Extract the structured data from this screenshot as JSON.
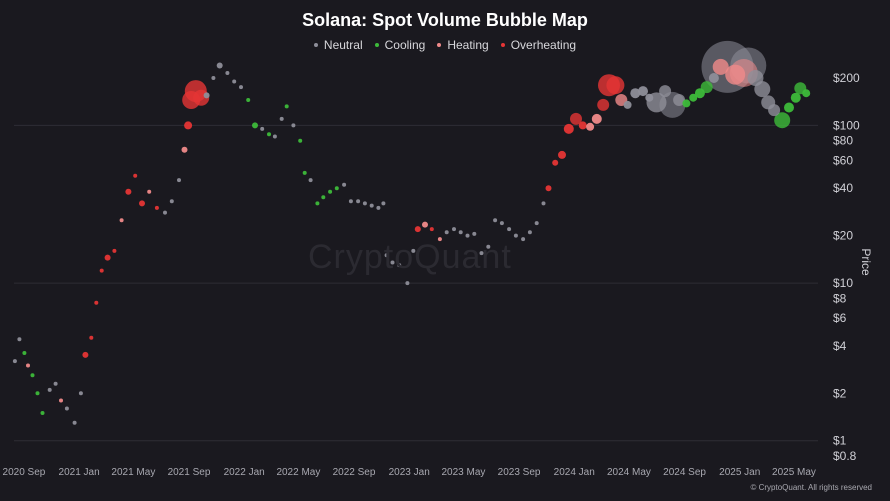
{
  "chart_data": {
    "type": "scatter",
    "title": "Solana: Spot Volume Bubble Map",
    "xlabel": "",
    "ylabel": "Price",
    "y_scale": "log",
    "ylim": [
      0.8,
      260
    ],
    "xlim": [
      "2020-08-10",
      "2025-06-01"
    ],
    "grid": "horizontal",
    "legend_position": "top-center",
    "x_ticks": [
      "2020 Sep",
      "2021 Jan",
      "2021 May",
      "2021 Sep",
      "2022 Jan",
      "2022 May",
      "2022 Sep",
      "2023 Jan",
      "2023 May",
      "2023 Sep",
      "2024 Jan",
      "2024 May",
      "2024 Sep",
      "2025 Jan",
      "2025 May"
    ],
    "x_tick_dates": [
      "2020-09-01",
      "2021-01-01",
      "2021-05-01",
      "2021-09-01",
      "2022-01-01",
      "2022-05-01",
      "2022-09-01",
      "2023-01-01",
      "2023-05-01",
      "2023-09-01",
      "2024-01-01",
      "2024-05-01",
      "2024-09-01",
      "2025-01-01",
      "2025-05-01"
    ],
    "y_ticks": [
      0.8,
      1,
      2,
      4,
      6,
      8,
      10,
      20,
      40,
      60,
      80,
      100,
      200
    ],
    "y_tick_labels": [
      "$0.8",
      "$1",
      "$2",
      "$4",
      "$6",
      "$8",
      "$10",
      "$20",
      "$40",
      "$60",
      "$80",
      "$100",
      "$200"
    ],
    "categories": [
      {
        "name": "Neutral",
        "color": "#8e8e99"
      },
      {
        "name": "Cooling",
        "color": "#3dbb3a"
      },
      {
        "name": "Heating",
        "color": "#f08a8a"
      },
      {
        "name": "Overheating",
        "color": "#e53535"
      }
    ],
    "series": [
      {
        "date": "2020-08-12",
        "price": 3.2,
        "state": "Neutral",
        "size": 2
      },
      {
        "date": "2020-08-22",
        "price": 4.4,
        "state": "Neutral",
        "size": 2
      },
      {
        "date": "2020-09-02",
        "price": 3.6,
        "state": "Cooling",
        "size": 2
      },
      {
        "date": "2020-09-10",
        "price": 3.0,
        "state": "Heating",
        "size": 2
      },
      {
        "date": "2020-09-20",
        "price": 2.6,
        "state": "Cooling",
        "size": 2
      },
      {
        "date": "2020-10-01",
        "price": 2.0,
        "state": "Cooling",
        "size": 2
      },
      {
        "date": "2020-10-12",
        "price": 1.5,
        "state": "Cooling",
        "size": 2
      },
      {
        "date": "2020-10-28",
        "price": 2.1,
        "state": "Neutral",
        "size": 2
      },
      {
        "date": "2020-11-10",
        "price": 2.3,
        "state": "Neutral",
        "size": 2
      },
      {
        "date": "2020-11-22",
        "price": 1.8,
        "state": "Heating",
        "size": 2
      },
      {
        "date": "2020-12-05",
        "price": 1.6,
        "state": "Neutral",
        "size": 2
      },
      {
        "date": "2020-12-22",
        "price": 1.3,
        "state": "Neutral",
        "size": 2
      },
      {
        "date": "2021-01-05",
        "price": 2.0,
        "state": "Neutral",
        "size": 2
      },
      {
        "date": "2021-01-15",
        "price": 3.5,
        "state": "Overheating",
        "size": 3
      },
      {
        "date": "2021-01-28",
        "price": 4.5,
        "state": "Overheating",
        "size": 2
      },
      {
        "date": "2021-02-08",
        "price": 7.5,
        "state": "Overheating",
        "size": 2
      },
      {
        "date": "2021-02-20",
        "price": 12.0,
        "state": "Overheating",
        "size": 2
      },
      {
        "date": "2021-03-05",
        "price": 14.5,
        "state": "Overheating",
        "size": 3
      },
      {
        "date": "2021-03-20",
        "price": 16.0,
        "state": "Overheating",
        "size": 2
      },
      {
        "date": "2021-04-05",
        "price": 25.0,
        "state": "Heating",
        "size": 2
      },
      {
        "date": "2021-04-20",
        "price": 38.0,
        "state": "Overheating",
        "size": 3
      },
      {
        "date": "2021-05-05",
        "price": 48.0,
        "state": "Overheating",
        "size": 2
      },
      {
        "date": "2021-05-20",
        "price": 32.0,
        "state": "Overheating",
        "size": 3
      },
      {
        "date": "2021-06-05",
        "price": 38.0,
        "state": "Heating",
        "size": 2
      },
      {
        "date": "2021-06-22",
        "price": 30.0,
        "state": "Overheating",
        "size": 2
      },
      {
        "date": "2021-07-10",
        "price": 28.0,
        "state": "Neutral",
        "size": 2
      },
      {
        "date": "2021-07-25",
        "price": 33.0,
        "state": "Neutral",
        "size": 2
      },
      {
        "date": "2021-08-10",
        "price": 45.0,
        "state": "Neutral",
        "size": 2
      },
      {
        "date": "2021-08-22",
        "price": 70.0,
        "state": "Heating",
        "size": 3
      },
      {
        "date": "2021-08-30",
        "price": 100.0,
        "state": "Overheating",
        "size": 4
      },
      {
        "date": "2021-09-06",
        "price": 145.0,
        "state": "Overheating",
        "size": 9
      },
      {
        "date": "2021-09-16",
        "price": 165.0,
        "state": "Overheating",
        "size": 11
      },
      {
        "date": "2021-09-28",
        "price": 150.0,
        "state": "Overheating",
        "size": 8
      },
      {
        "date": "2021-10-10",
        "price": 155.0,
        "state": "Neutral",
        "size": 3
      },
      {
        "date": "2021-10-25",
        "price": 200.0,
        "state": "Neutral",
        "size": 2
      },
      {
        "date": "2021-11-08",
        "price": 240.0,
        "state": "Neutral",
        "size": 3
      },
      {
        "date": "2021-11-25",
        "price": 215.0,
        "state": "Neutral",
        "size": 2
      },
      {
        "date": "2021-12-10",
        "price": 190.0,
        "state": "Neutral",
        "size": 2
      },
      {
        "date": "2021-12-25",
        "price": 175.0,
        "state": "Neutral",
        "size": 2
      },
      {
        "date": "2022-01-10",
        "price": 145.0,
        "state": "Cooling",
        "size": 2
      },
      {
        "date": "2022-01-25",
        "price": 100.0,
        "state": "Cooling",
        "size": 3
      },
      {
        "date": "2022-02-10",
        "price": 95.0,
        "state": "Neutral",
        "size": 2
      },
      {
        "date": "2022-02-25",
        "price": 88.0,
        "state": "Cooling",
        "size": 2
      },
      {
        "date": "2022-03-10",
        "price": 85.0,
        "state": "Neutral",
        "size": 2
      },
      {
        "date": "2022-03-25",
        "price": 110.0,
        "state": "Neutral",
        "size": 2
      },
      {
        "date": "2022-04-05",
        "price": 132.0,
        "state": "Cooling",
        "size": 2
      },
      {
        "date": "2022-04-20",
        "price": 100.0,
        "state": "Neutral",
        "size": 2
      },
      {
        "date": "2022-05-05",
        "price": 80.0,
        "state": "Cooling",
        "size": 2
      },
      {
        "date": "2022-05-15",
        "price": 50.0,
        "state": "Cooling",
        "size": 2
      },
      {
        "date": "2022-05-28",
        "price": 45.0,
        "state": "Neutral",
        "size": 2
      },
      {
        "date": "2022-06-12",
        "price": 32.0,
        "state": "Cooling",
        "size": 2
      },
      {
        "date": "2022-06-25",
        "price": 35.0,
        "state": "Cooling",
        "size": 2
      },
      {
        "date": "2022-07-10",
        "price": 38.0,
        "state": "Cooling",
        "size": 2
      },
      {
        "date": "2022-07-25",
        "price": 40.0,
        "state": "Cooling",
        "size": 2
      },
      {
        "date": "2022-08-10",
        "price": 42.0,
        "state": "Neutral",
        "size": 2
      },
      {
        "date": "2022-08-25",
        "price": 33.0,
        "state": "Neutral",
        "size": 2
      },
      {
        "date": "2022-09-10",
        "price": 33.0,
        "state": "Neutral",
        "size": 2
      },
      {
        "date": "2022-09-25",
        "price": 32.0,
        "state": "Neutral",
        "size": 2
      },
      {
        "date": "2022-10-10",
        "price": 31.0,
        "state": "Neutral",
        "size": 2
      },
      {
        "date": "2022-10-25",
        "price": 30.0,
        "state": "Neutral",
        "size": 2
      },
      {
        "date": "2022-11-05",
        "price": 32.0,
        "state": "Neutral",
        "size": 2
      },
      {
        "date": "2022-11-12",
        "price": 15.0,
        "state": "Neutral",
        "size": 2
      },
      {
        "date": "2022-11-25",
        "price": 13.5,
        "state": "Neutral",
        "size": 2
      },
      {
        "date": "2022-12-10",
        "price": 13.0,
        "state": "Neutral",
        "size": 2
      },
      {
        "date": "2022-12-28",
        "price": 10.0,
        "state": "Neutral",
        "size": 2
      },
      {
        "date": "2023-01-10",
        "price": 16.0,
        "state": "Neutral",
        "size": 2
      },
      {
        "date": "2023-01-20",
        "price": 22.0,
        "state": "Overheating",
        "size": 3
      },
      {
        "date": "2023-02-05",
        "price": 23.5,
        "state": "Heating",
        "size": 3
      },
      {
        "date": "2023-02-20",
        "price": 22.0,
        "state": "Overheating",
        "size": 2
      },
      {
        "date": "2023-03-10",
        "price": 19.0,
        "state": "Heating",
        "size": 2
      },
      {
        "date": "2023-03-25",
        "price": 21.0,
        "state": "Neutral",
        "size": 2
      },
      {
        "date": "2023-04-10",
        "price": 22.0,
        "state": "Neutral",
        "size": 2
      },
      {
        "date": "2023-04-25",
        "price": 21.0,
        "state": "Neutral",
        "size": 2
      },
      {
        "date": "2023-05-10",
        "price": 20.0,
        "state": "Neutral",
        "size": 2
      },
      {
        "date": "2023-05-25",
        "price": 20.5,
        "state": "Neutral",
        "size": 2
      },
      {
        "date": "2023-06-10",
        "price": 15.5,
        "state": "Neutral",
        "size": 2
      },
      {
        "date": "2023-06-25",
        "price": 17.0,
        "state": "Neutral",
        "size": 2
      },
      {
        "date": "2023-07-10",
        "price": 25.0,
        "state": "Neutral",
        "size": 2
      },
      {
        "date": "2023-07-25",
        "price": 24.0,
        "state": "Neutral",
        "size": 2
      },
      {
        "date": "2023-08-10",
        "price": 22.0,
        "state": "Neutral",
        "size": 2
      },
      {
        "date": "2023-08-25",
        "price": 20.0,
        "state": "Neutral",
        "size": 2
      },
      {
        "date": "2023-09-10",
        "price": 19.0,
        "state": "Neutral",
        "size": 2
      },
      {
        "date": "2023-09-25",
        "price": 21.0,
        "state": "Neutral",
        "size": 2
      },
      {
        "date": "2023-10-10",
        "price": 24.0,
        "state": "Neutral",
        "size": 2
      },
      {
        "date": "2023-10-25",
        "price": 32.0,
        "state": "Neutral",
        "size": 2
      },
      {
        "date": "2023-11-05",
        "price": 40.0,
        "state": "Overheating",
        "size": 3
      },
      {
        "date": "2023-11-20",
        "price": 58.0,
        "state": "Overheating",
        "size": 3
      },
      {
        "date": "2023-12-05",
        "price": 65.0,
        "state": "Overheating",
        "size": 4
      },
      {
        "date": "2023-12-20",
        "price": 95.0,
        "state": "Overheating",
        "size": 5
      },
      {
        "date": "2024-01-05",
        "price": 110.0,
        "state": "Overheating",
        "size": 6
      },
      {
        "date": "2024-01-20",
        "price": 100.0,
        "state": "Overheating",
        "size": 4
      },
      {
        "date": "2024-02-05",
        "price": 98.0,
        "state": "Heating",
        "size": 4
      },
      {
        "date": "2024-02-20",
        "price": 110.0,
        "state": "Heating",
        "size": 5
      },
      {
        "date": "2024-03-05",
        "price": 135.0,
        "state": "Overheating",
        "size": 6
      },
      {
        "date": "2024-03-18",
        "price": 180.0,
        "state": "Overheating",
        "size": 11
      },
      {
        "date": "2024-04-01",
        "price": 180.0,
        "state": "Overheating",
        "size": 9
      },
      {
        "date": "2024-04-14",
        "price": 145.0,
        "state": "Heating",
        "size": 6
      },
      {
        "date": "2024-04-28",
        "price": 135.0,
        "state": "Neutral",
        "size": 4
      },
      {
        "date": "2024-05-15",
        "price": 160.0,
        "state": "Neutral",
        "size": 5
      },
      {
        "date": "2024-06-01",
        "price": 165.0,
        "state": "Neutral",
        "size": 5
      },
      {
        "date": "2024-06-15",
        "price": 150.0,
        "state": "Neutral",
        "size": 4
      },
      {
        "date": "2024-07-01",
        "price": 140.0,
        "state": "Neutral",
        "size": 10
      },
      {
        "date": "2024-07-20",
        "price": 165.0,
        "state": "Neutral",
        "size": 6
      },
      {
        "date": "2024-08-05",
        "price": 135.0,
        "state": "Neutral",
        "size": 13
      },
      {
        "date": "2024-08-20",
        "price": 145.0,
        "state": "Neutral",
        "size": 6
      },
      {
        "date": "2024-09-05",
        "price": 138.0,
        "state": "Cooling",
        "size": 4
      },
      {
        "date": "2024-09-20",
        "price": 150.0,
        "state": "Cooling",
        "size": 4
      },
      {
        "date": "2024-10-05",
        "price": 160.0,
        "state": "Cooling",
        "size": 5
      },
      {
        "date": "2024-10-20",
        "price": 175.0,
        "state": "Cooling",
        "size": 6
      },
      {
        "date": "2024-11-05",
        "price": 200.0,
        "state": "Neutral",
        "size": 5
      },
      {
        "date": "2024-11-20",
        "price": 235.0,
        "state": "Heating",
        "size": 8
      },
      {
        "date": "2024-12-05",
        "price": 235.0,
        "state": "Neutral",
        "size": 26
      },
      {
        "date": "2024-12-22",
        "price": 210.0,
        "state": "Heating",
        "size": 10
      },
      {
        "date": "2025-01-10",
        "price": 215.0,
        "state": "Heating",
        "size": 14
      },
      {
        "date": "2025-01-20",
        "price": 240.0,
        "state": "Neutral",
        "size": 18
      },
      {
        "date": "2025-02-05",
        "price": 200.0,
        "state": "Neutral",
        "size": 8
      },
      {
        "date": "2025-02-20",
        "price": 170.0,
        "state": "Neutral",
        "size": 8
      },
      {
        "date": "2025-03-05",
        "price": 140.0,
        "state": "Neutral",
        "size": 7
      },
      {
        "date": "2025-03-18",
        "price": 125.0,
        "state": "Neutral",
        "size": 6
      },
      {
        "date": "2025-04-05",
        "price": 108.0,
        "state": "Cooling",
        "size": 8
      },
      {
        "date": "2025-04-20",
        "price": 130.0,
        "state": "Cooling",
        "size": 5
      },
      {
        "date": "2025-05-05",
        "price": 150.0,
        "state": "Cooling",
        "size": 5
      },
      {
        "date": "2025-05-15",
        "price": 172.0,
        "state": "Cooling",
        "size": 6
      },
      {
        "date": "2025-05-28",
        "price": 160.0,
        "state": "Cooling",
        "size": 4
      }
    ]
  },
  "watermark": "CryptoQuant",
  "credit": "© CryptoQuant. All rights reserved"
}
